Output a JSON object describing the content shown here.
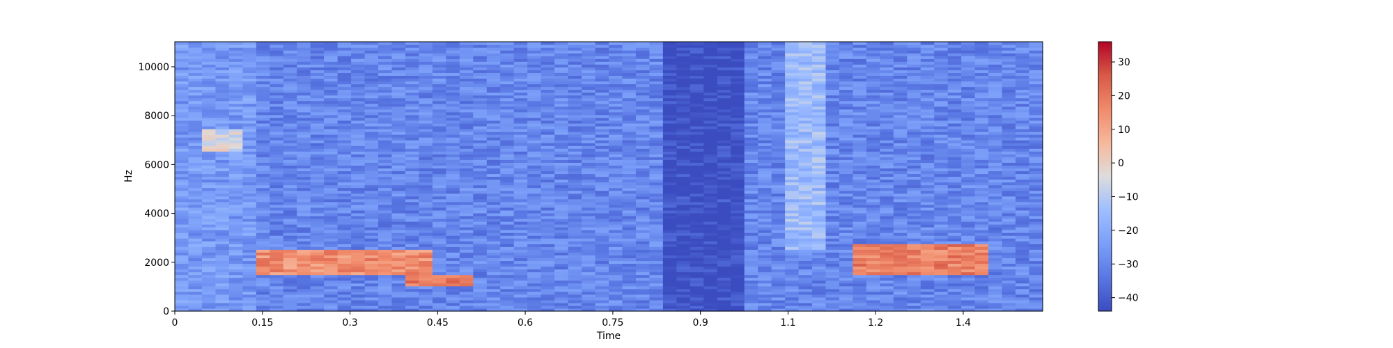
{
  "chart_data": {
    "type": "heatmap",
    "title": "",
    "xlabel": "Time",
    "ylabel": "Hz",
    "xlim": [
      0,
      1.486
    ],
    "ylim": [
      0,
      11025
    ],
    "x_ticks": [
      0,
      0.15,
      0.3,
      0.45,
      0.6,
      0.75,
      0.9,
      1.05,
      1.2,
      1.35
    ],
    "x_tick_labels": [
      "0",
      "0.15",
      "0.3",
      "0.45",
      "0.6",
      "0.75",
      "0.9",
      "1.1",
      "1.2",
      "1.4"
    ],
    "y_ticks": [
      0,
      2000,
      4000,
      6000,
      8000,
      10000
    ],
    "y_tick_labels": [
      "0",
      "2000",
      "4000",
      "6000",
      "8000",
      "10000"
    ],
    "colormap": "coolwarm",
    "colorbar": {
      "range": [
        -44,
        36
      ],
      "ticks": [
        -40,
        -30,
        -20,
        -10,
        0,
        10,
        20,
        30
      ],
      "tick_labels": [
        "−40",
        "−30",
        "−20",
        "−10",
        "0",
        "10",
        "20",
        "30"
      ]
    },
    "approx_regions_db": [
      {
        "time": [
          0.0,
          0.15
        ],
        "freq": [
          0,
          11025
        ],
        "level_db": -25
      },
      {
        "time": [
          0.05,
          0.11
        ],
        "freq": [
          6500,
          7500
        ],
        "level_db": -5
      },
      {
        "time": [
          0.15,
          0.45
        ],
        "freq": [
          1500,
          2500
        ],
        "level_db": 15
      },
      {
        "time": [
          0.4,
          0.5
        ],
        "freq": [
          1000,
          1500
        ],
        "level_db": 20
      },
      {
        "time": [
          0.5,
          0.85
        ],
        "freq": [
          0,
          11025
        ],
        "level_db": -30
      },
      {
        "time": [
          0.84,
          0.98
        ],
        "freq": [
          0,
          11025
        ],
        "level_db": -44
      },
      {
        "time": [
          1.05,
          1.12
        ],
        "freq": [
          2500,
          11025
        ],
        "level_db": -15
      },
      {
        "time": [
          1.15,
          1.4
        ],
        "freq": [
          1500,
          2800
        ],
        "level_db": 18
      }
    ],
    "grid": false,
    "legend": "colorbar-right"
  }
}
